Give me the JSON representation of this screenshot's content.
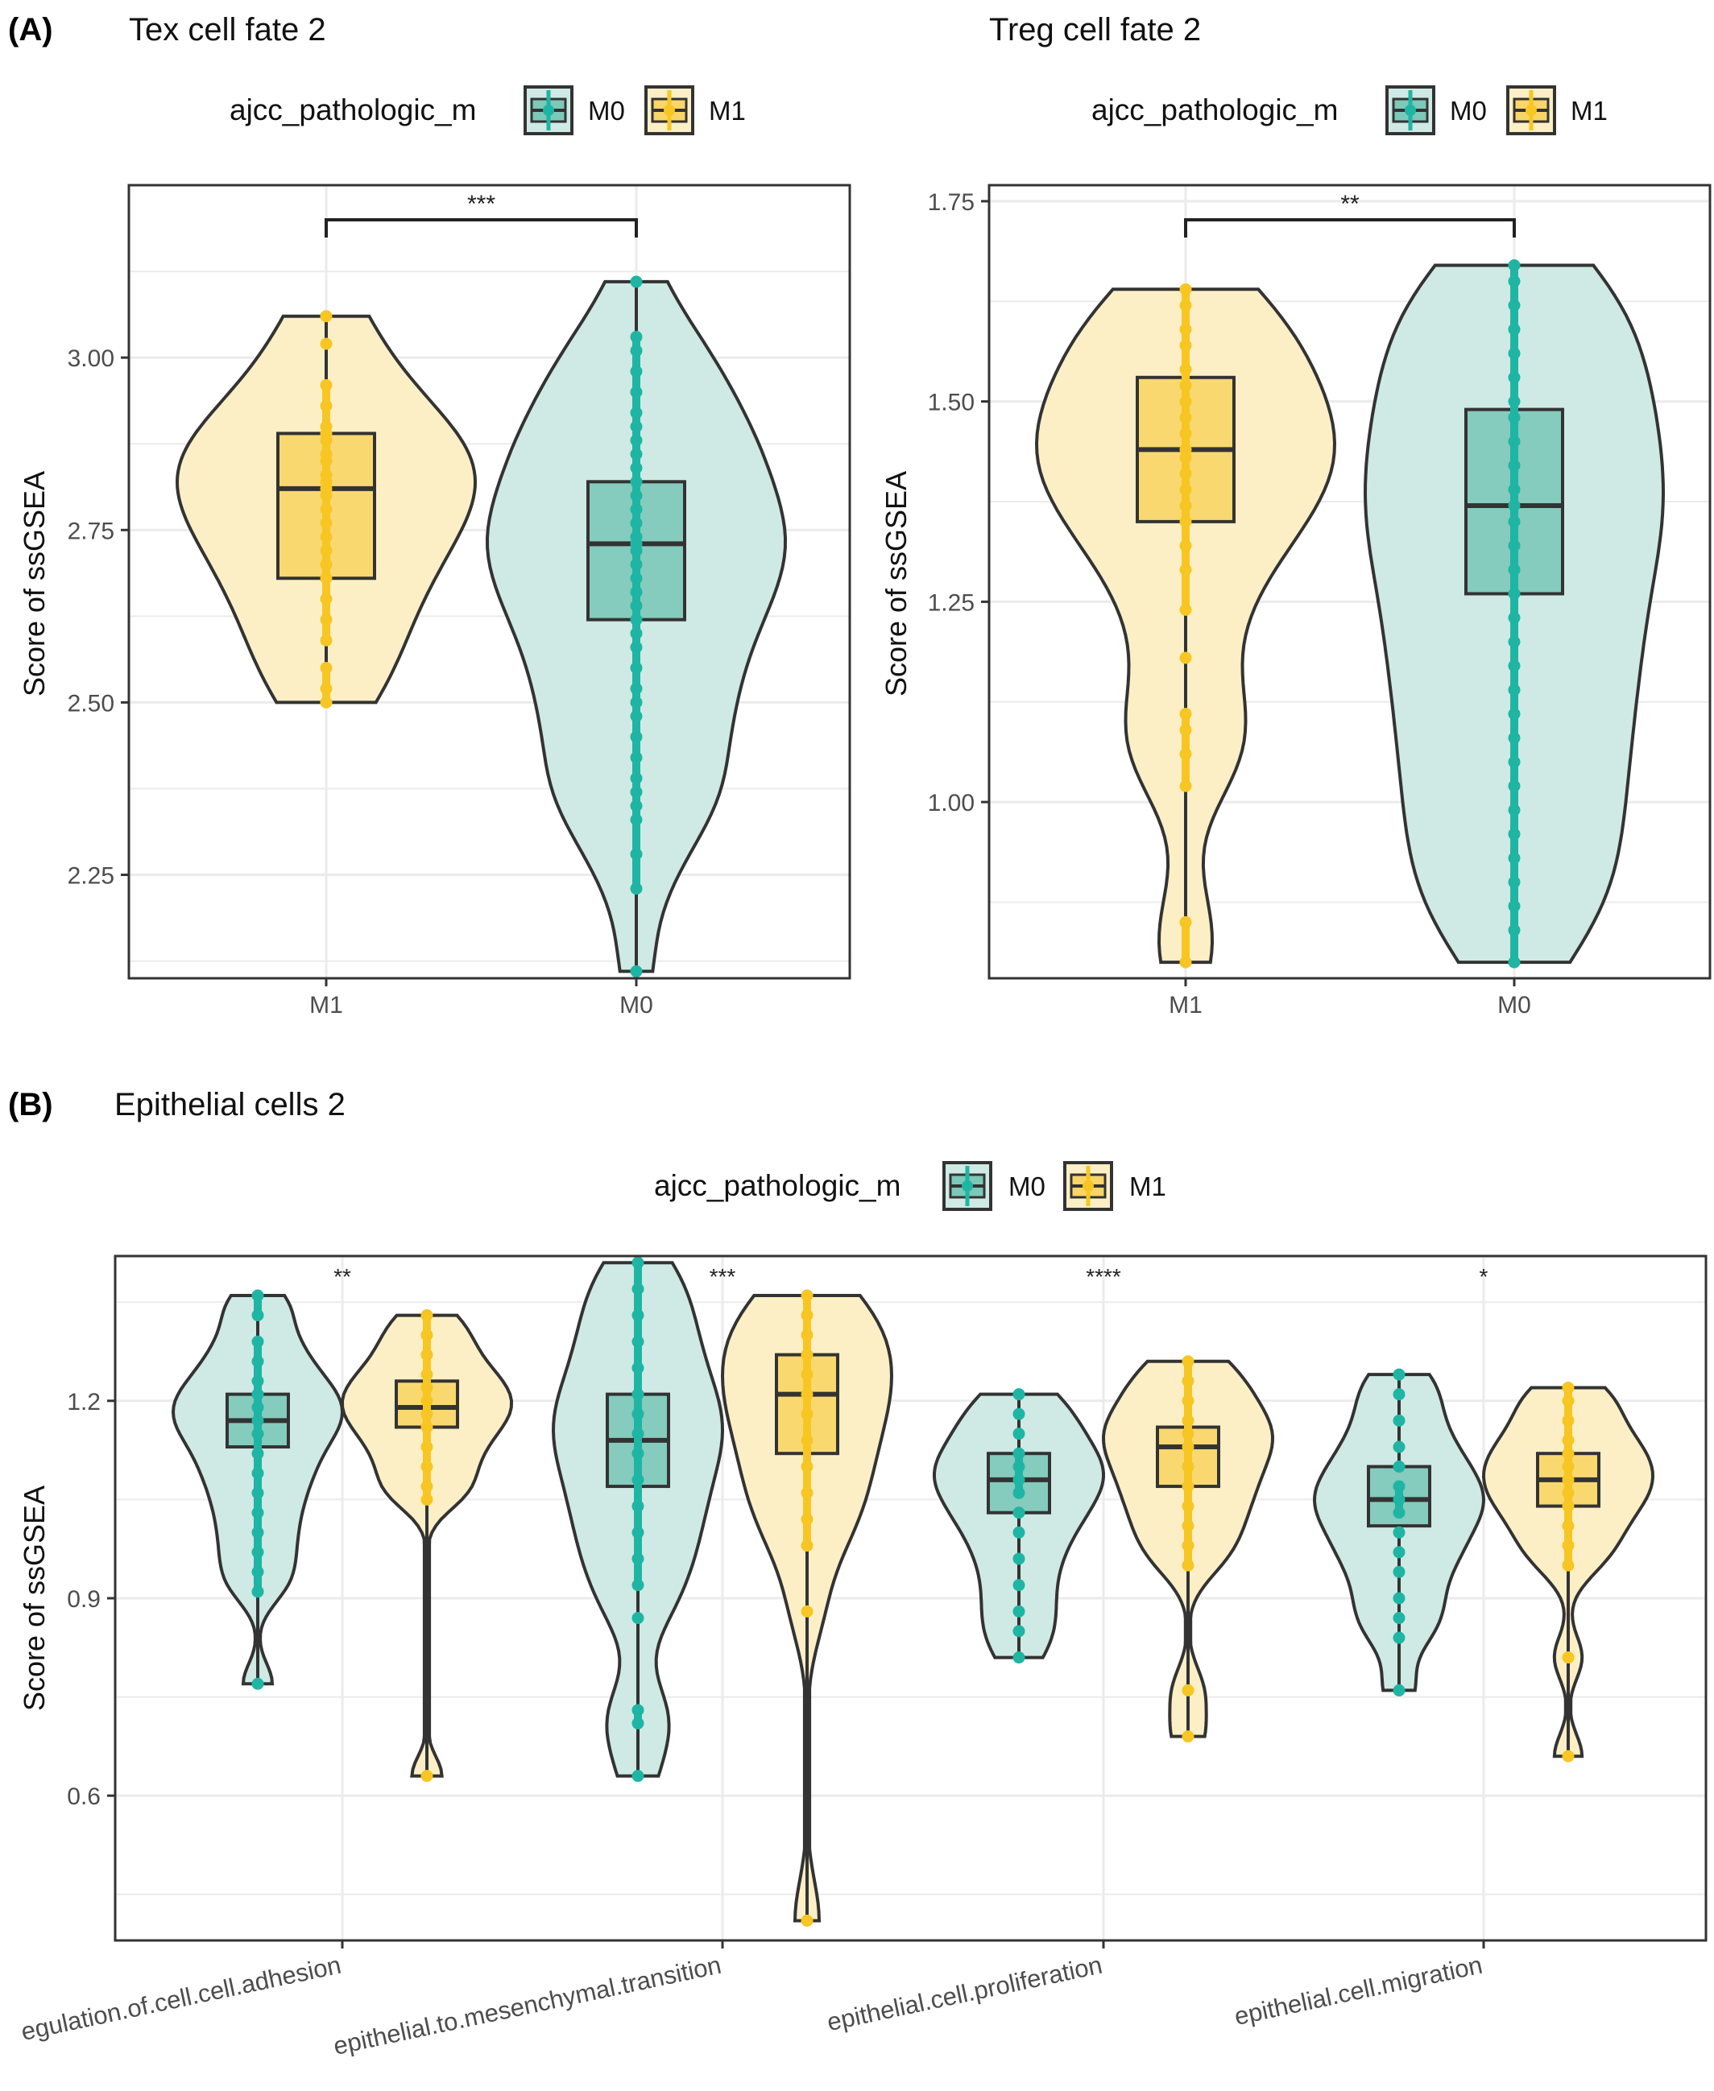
{
  "colors": {
    "M0": "#1fb5a4",
    "M1": "#f7c623",
    "M0_fill": "#cfe9e4",
    "M1_fill": "#fcefc6",
    "M0_box": "#7cc8b9",
    "M1_box": "#f8d566",
    "outline": "#333333",
    "grid": "#ebebeb",
    "panel_border": "#333333"
  },
  "chart_data": [
    {
      "panel_label": "(A)",
      "type": "violin",
      "title": "Tex cell fate 2",
      "legend": {
        "title": "ajcc_pathologic_m",
        "entries": [
          "M0",
          "M1"
        ],
        "placement": "top"
      },
      "ylabel": "Score of ssGSEA",
      "ylim": [
        2.1,
        3.25
      ],
      "yticks": [
        2.25,
        2.5,
        2.75,
        3.0
      ],
      "ytick_labels": [
        "2.25",
        "2.50",
        "2.75",
        "3.00"
      ],
      "categories": [
        "M1",
        "M0"
      ],
      "groups": [
        {
          "label": "M1",
          "series": "M1",
          "min": 2.5,
          "q1": 2.68,
          "median": 2.81,
          "q3": 2.89,
          "max": 3.06,
          "points": [
            2.5,
            2.52,
            2.55,
            2.59,
            2.62,
            2.65,
            2.68,
            2.7,
            2.72,
            2.74,
            2.76,
            2.78,
            2.8,
            2.81,
            2.82,
            2.83,
            2.85,
            2.86,
            2.88,
            2.89,
            2.9,
            2.93,
            2.96,
            3.02,
            3.06
          ]
        },
        {
          "label": "M0",
          "series": "M0",
          "min": 2.11,
          "q1": 2.62,
          "median": 2.73,
          "q3": 2.82,
          "max": 3.11,
          "points": [
            2.11,
            2.23,
            2.28,
            2.33,
            2.35,
            2.37,
            2.39,
            2.42,
            2.45,
            2.48,
            2.5,
            2.52,
            2.55,
            2.58,
            2.6,
            2.62,
            2.64,
            2.66,
            2.68,
            2.7,
            2.72,
            2.73,
            2.74,
            2.76,
            2.78,
            2.8,
            2.82,
            2.84,
            2.86,
            2.88,
            2.9,
            2.92,
            2.95,
            2.98,
            3.01,
            3.03,
            3.11
          ]
        }
      ],
      "significance": [
        {
          "between": [
            "M1",
            "M0"
          ],
          "label": "***"
        }
      ]
    },
    {
      "type": "violin",
      "title": "Treg cell fate 2",
      "legend": {
        "title": "ajcc_pathologic_m",
        "entries": [
          "M0",
          "M1"
        ],
        "placement": "top"
      },
      "ylabel": "Score of ssGSEA",
      "ylim": [
        0.78,
        1.77
      ],
      "yticks": [
        1.0,
        1.25,
        1.5,
        1.75
      ],
      "ytick_labels": [
        "1.00",
        "1.25",
        "1.50",
        "1.75"
      ],
      "categories": [
        "M1",
        "M0"
      ],
      "groups": [
        {
          "label": "M1",
          "series": "M1",
          "min": 0.8,
          "q1": 1.35,
          "median": 1.44,
          "q3": 1.53,
          "max": 1.64,
          "points": [
            0.8,
            0.85,
            1.02,
            1.06,
            1.09,
            1.11,
            1.18,
            1.24,
            1.29,
            1.32,
            1.35,
            1.37,
            1.39,
            1.41,
            1.43,
            1.44,
            1.46,
            1.48,
            1.5,
            1.52,
            1.54,
            1.57,
            1.59,
            1.62,
            1.64
          ]
        },
        {
          "label": "M0",
          "series": "M0",
          "min": 0.8,
          "q1": 1.26,
          "median": 1.37,
          "q3": 1.49,
          "max": 1.67,
          "points": [
            0.8,
            0.84,
            0.87,
            0.9,
            0.93,
            0.96,
            0.99,
            1.02,
            1.05,
            1.08,
            1.11,
            1.14,
            1.17,
            1.2,
            1.23,
            1.26,
            1.29,
            1.32,
            1.35,
            1.37,
            1.39,
            1.42,
            1.45,
            1.48,
            1.5,
            1.53,
            1.56,
            1.59,
            1.62,
            1.65,
            1.67
          ]
        }
      ],
      "significance": [
        {
          "between": [
            "M1",
            "M0"
          ],
          "label": "**"
        }
      ]
    },
    {
      "panel_label": "(B)",
      "type": "violin",
      "title": "Epithelial cells 2",
      "legend": {
        "title": "ajcc_pathologic_m",
        "entries": [
          "M0",
          "M1"
        ],
        "placement": "top"
      },
      "ylabel": "Score of ssGSEA",
      "ylim": [
        0.38,
        1.42
      ],
      "yticks": [
        0.6,
        0.9,
        1.2
      ],
      "ytick_labels": [
        "0.6",
        "0.9",
        "1.2"
      ],
      "categories": [
        "egulation.of.cell.cell.adhesion",
        "epithelial.to.mesenchymal.transition",
        "epithelial.cell.proliferation",
        "epithelial.cell.migration"
      ],
      "significance": [
        "**",
        "***",
        "****",
        "*"
      ],
      "groups": [
        {
          "category": "egulation.of.cell.cell.adhesion",
          "series": "M0",
          "min": 0.77,
          "q1": 1.13,
          "median": 1.17,
          "q3": 1.21,
          "max": 1.36,
          "points": [
            0.77,
            0.91,
            0.94,
            0.97,
            1.0,
            1.03,
            1.06,
            1.09,
            1.12,
            1.15,
            1.17,
            1.19,
            1.21,
            1.23,
            1.26,
            1.29,
            1.33,
            1.36
          ]
        },
        {
          "category": "egulation.of.cell.cell.adhesion",
          "series": "M1",
          "min": 0.63,
          "q1": 1.16,
          "median": 1.19,
          "q3": 1.23,
          "max": 1.33,
          "points": [
            0.63,
            1.05,
            1.07,
            1.1,
            1.13,
            1.16,
            1.18,
            1.2,
            1.22,
            1.24,
            1.27,
            1.3,
            1.33
          ]
        },
        {
          "category": "epithelial.to.mesenchymal.transition",
          "series": "M0",
          "min": 0.63,
          "q1": 1.07,
          "median": 1.14,
          "q3": 1.21,
          "max": 1.41,
          "points": [
            0.63,
            0.71,
            0.73,
            0.87,
            0.92,
            0.96,
            1.0,
            1.04,
            1.08,
            1.12,
            1.15,
            1.18,
            1.21,
            1.25,
            1.29,
            1.33,
            1.37,
            1.41
          ]
        },
        {
          "category": "epithelial.to.mesenchymal.transition",
          "series": "M1",
          "min": 0.41,
          "q1": 1.12,
          "median": 1.21,
          "q3": 1.27,
          "max": 1.36,
          "points": [
            0.41,
            0.88,
            0.98,
            1.02,
            1.06,
            1.1,
            1.14,
            1.18,
            1.21,
            1.24,
            1.27,
            1.3,
            1.33,
            1.36
          ]
        },
        {
          "category": "epithelial.cell.proliferation",
          "series": "M0",
          "min": 0.81,
          "q1": 1.03,
          "median": 1.08,
          "q3": 1.12,
          "max": 1.21,
          "points": [
            0.81,
            0.85,
            0.88,
            0.92,
            0.96,
            1.0,
            1.03,
            1.06,
            1.08,
            1.1,
            1.12,
            1.15,
            1.18,
            1.21
          ]
        },
        {
          "category": "epithelial.cell.proliferation",
          "series": "M1",
          "min": 0.69,
          "q1": 1.07,
          "median": 1.13,
          "q3": 1.16,
          "max": 1.26,
          "points": [
            0.69,
            0.76,
            0.95,
            0.98,
            1.01,
            1.04,
            1.07,
            1.1,
            1.13,
            1.15,
            1.17,
            1.2,
            1.23,
            1.26
          ]
        },
        {
          "category": "epithelial.cell.migration",
          "series": "M0",
          "min": 0.76,
          "q1": 1.01,
          "median": 1.05,
          "q3": 1.1,
          "max": 1.24,
          "points": [
            0.76,
            0.84,
            0.87,
            0.9,
            0.94,
            0.97,
            1.0,
            1.03,
            1.05,
            1.07,
            1.1,
            1.13,
            1.17,
            1.21,
            1.24
          ]
        },
        {
          "category": "epithelial.cell.migration",
          "series": "M1",
          "min": 0.66,
          "q1": 1.04,
          "median": 1.08,
          "q3": 1.12,
          "max": 1.22,
          "points": [
            0.66,
            0.81,
            0.95,
            0.98,
            1.01,
            1.04,
            1.06,
            1.08,
            1.1,
            1.12,
            1.14,
            1.17,
            1.2,
            1.22
          ]
        }
      ]
    }
  ]
}
